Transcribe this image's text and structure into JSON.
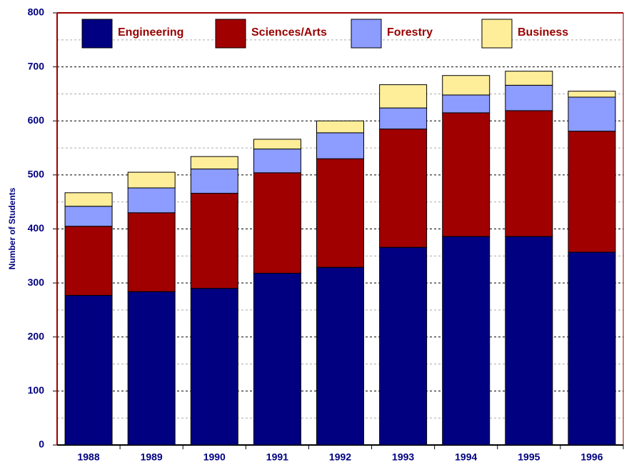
{
  "chart_data": {
    "type": "stacked_bar",
    "y_label": "Number of Students",
    "categories": [
      "1988",
      "1989",
      "1990",
      "1991",
      "1992",
      "1993",
      "1994",
      "1995",
      "1996"
    ],
    "series": [
      {
        "name": "Engineering",
        "color": "#000080",
        "values": [
          277,
          284,
          290,
          318,
          329,
          366,
          386,
          386,
          357
        ]
      },
      {
        "name": "Sciences/Arts",
        "color": "#a00000",
        "values": [
          128,
          146,
          176,
          186,
          201,
          219,
          229,
          233,
          224
        ]
      },
      {
        "name": "Forestry",
        "color": "#8c9cff",
        "values": [
          37,
          46,
          45,
          44,
          48,
          39,
          33,
          47,
          63
        ]
      },
      {
        "name": "Business",
        "color": "#ffee99",
        "values": [
          25,
          29,
          23,
          18,
          22,
          43,
          36,
          26,
          11
        ]
      }
    ],
    "ylim": [
      0,
      800
    ],
    "yticks": [
      0,
      100,
      200,
      300,
      400,
      500,
      600,
      700,
      800
    ],
    "grid": true,
    "legend": "top"
  }
}
